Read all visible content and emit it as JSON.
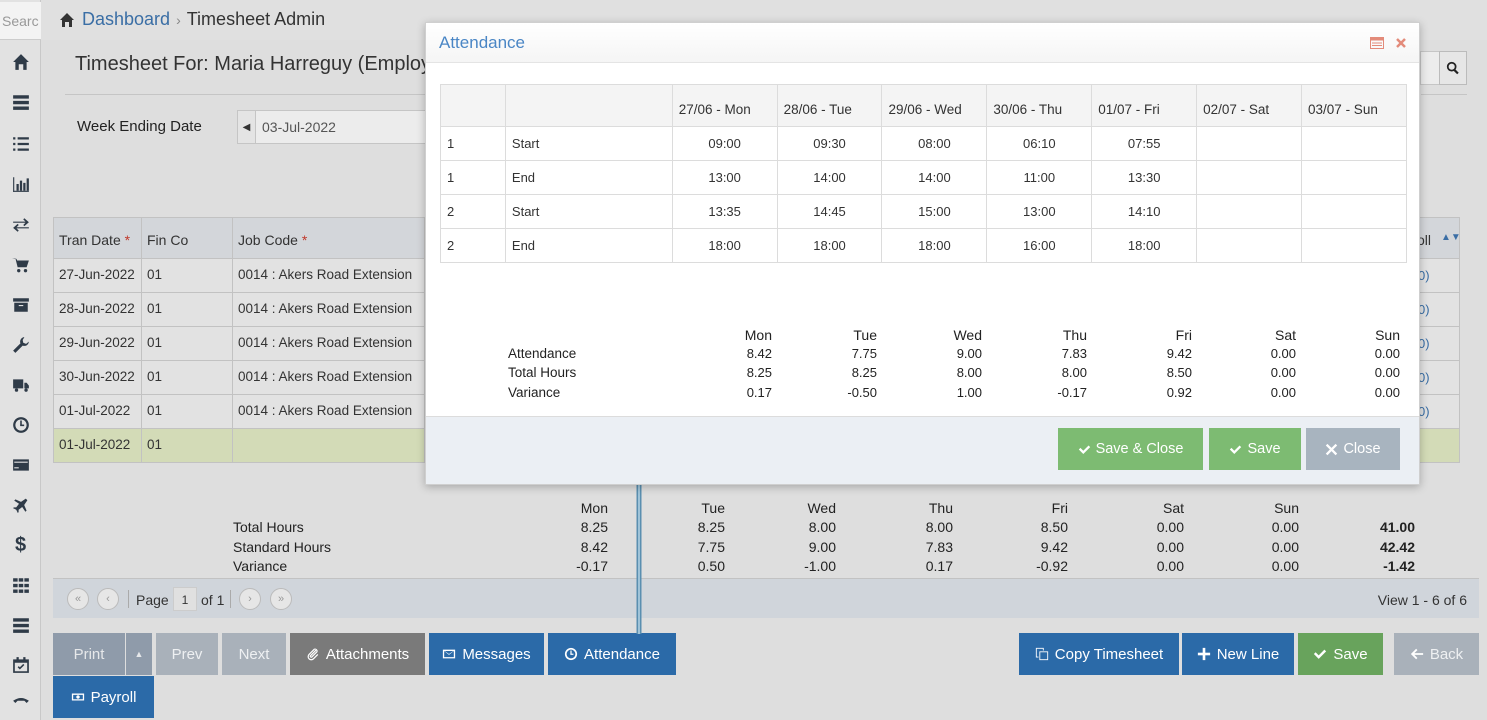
{
  "sidebar": {
    "search_placeholder": "Searc"
  },
  "breadcrumb": {
    "home": "Dashboard",
    "current": "Timesheet Admin",
    "separator": "›"
  },
  "page": {
    "title": "Timesheet For: Maria Harreguy (Employee",
    "week_label": "Week Ending Date",
    "week_value": "03-Jul-2022"
  },
  "grid": {
    "headers": {
      "tran_date": "Tran Date",
      "fin_co": "Fin Co",
      "job_code": "Job Code",
      "required": "*",
      "right": "oll"
    },
    "rows": [
      {
        "date": "27-Jun-2022",
        "fin": "01",
        "job": "0014 : Akers Road Extension",
        "right": "0)"
      },
      {
        "date": "28-Jun-2022",
        "fin": "01",
        "job": "0014 : Akers Road Extension",
        "right": "0)"
      },
      {
        "date": "29-Jun-2022",
        "fin": "01",
        "job": "0014 : Akers Road Extension",
        "right": "0)"
      },
      {
        "date": "30-Jun-2022",
        "fin": "01",
        "job": "0014 : Akers Road Extension",
        "right": "0)"
      },
      {
        "date": "01-Jul-2022",
        "fin": "01",
        "job": "0014 : Akers Road Extension",
        "right": "0)"
      },
      {
        "date": "01-Jul-2022",
        "fin": "01",
        "job": "",
        "right": ""
      }
    ]
  },
  "totals": {
    "days": [
      "Mon",
      "Tue",
      "Wed",
      "Thu",
      "Fri",
      "Sat",
      "Sun"
    ],
    "rows": [
      {
        "label": "Total Hours",
        "values": [
          "8.25",
          "8.25",
          "8.00",
          "8.00",
          "8.50",
          "0.00",
          "0.00"
        ],
        "total": "41.00"
      },
      {
        "label": "Standard Hours",
        "values": [
          "8.42",
          "7.75",
          "9.00",
          "7.83",
          "9.42",
          "0.00",
          "0.00"
        ],
        "total": "42.42"
      },
      {
        "label": "Variance",
        "values": [
          "-0.17",
          "0.50",
          "-1.00",
          "0.17",
          "-0.92",
          "0.00",
          "0.00"
        ],
        "total": "-1.42"
      }
    ]
  },
  "pager": {
    "page_label": "Page",
    "page": "1",
    "of": "of 1",
    "view": "View 1 - 6 of 6"
  },
  "buttons": {
    "print": "Print",
    "prev": "Prev",
    "next": "Next",
    "attachments": "Attachments",
    "messages": "Messages",
    "attendance": "Attendance",
    "copy": "Copy Timesheet",
    "new_line": "New Line",
    "save": "Save",
    "back": "Back",
    "payroll": "Payroll"
  },
  "modal": {
    "title": "Attendance",
    "columns": [
      "27/06 - Mon",
      "28/06 - Tue",
      "29/06 - Wed",
      "30/06 - Thu",
      "01/07 - Fri",
      "02/07 - Sat",
      "03/07 - Sun"
    ],
    "rows": [
      {
        "seq": "1",
        "type": "Start",
        "times": [
          "09:00",
          "09:30",
          "08:00",
          "06:10",
          "07:55",
          "",
          ""
        ]
      },
      {
        "seq": "1",
        "type": "End",
        "times": [
          "13:00",
          "14:00",
          "14:00",
          "11:00",
          "13:30",
          "",
          ""
        ]
      },
      {
        "seq": "2",
        "type": "Start",
        "times": [
          "13:35",
          "14:45",
          "15:00",
          "13:00",
          "14:10",
          "",
          ""
        ]
      },
      {
        "seq": "2",
        "type": "End",
        "times": [
          "18:00",
          "18:00",
          "18:00",
          "16:00",
          "18:00",
          "",
          ""
        ]
      }
    ],
    "summary": {
      "days": [
        "Mon",
        "Tue",
        "Wed",
        "Thu",
        "Fri",
        "Sat",
        "Sun"
      ],
      "rows": [
        {
          "label": "Attendance",
          "values": [
            "8.42",
            "7.75",
            "9.00",
            "7.83",
            "9.42",
            "0.00",
            "0.00"
          ]
        },
        {
          "label": "Total Hours",
          "values": [
            "8.25",
            "8.25",
            "8.00",
            "8.00",
            "8.50",
            "0.00",
            "0.00"
          ]
        },
        {
          "label": "Variance",
          "values": [
            "0.17",
            "-0.50",
            "1.00",
            "-0.17",
            "0.92",
            "0.00",
            "0.00"
          ]
        }
      ]
    },
    "buttons": {
      "save_close": "Save & Close",
      "save": "Save",
      "close": "Close"
    }
  },
  "colors": {
    "accent_blue": "#2b6aa8",
    "accent_green": "#68a35c",
    "title_blue": "#4a86c5",
    "selected_row": "#d3dbb7"
  }
}
